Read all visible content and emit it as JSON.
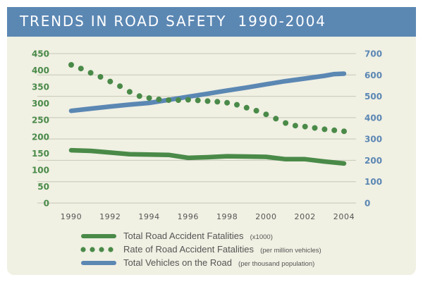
{
  "header": {
    "title": "TRENDS IN ROAD SAFETY  1990-2004"
  },
  "colors": {
    "header_bg": "#5b87b3",
    "panel_bg": "#f0f0e3",
    "green": "#4a8a48",
    "blue": "#5b87b3",
    "grid": "#c8c8b8"
  },
  "chart_data": {
    "type": "line",
    "title": "TRENDS IN ROAD SAFETY  1990-2004",
    "xlabel": "",
    "ylabel_left": "",
    "ylabel_right": "",
    "x_ticks": [
      "1990",
      "1992",
      "1994",
      "1996",
      "1998",
      "2000",
      "2002",
      "2004"
    ],
    "xlim": [
      1990,
      2004
    ],
    "y_left": {
      "ticks": [
        "0",
        "50",
        "100",
        "150",
        "200",
        "250",
        "300",
        "350",
        "400",
        "450"
      ],
      "ylim": [
        0,
        450
      ]
    },
    "y_right": {
      "ticks": [
        "0",
        "100",
        "200",
        "300",
        "400",
        "500",
        "600",
        "700"
      ],
      "ylim": [
        0,
        700
      ]
    },
    "grid": true,
    "legend_position": "bottom",
    "series": [
      {
        "name": "Total Road Accident Fatalities",
        "unit": "(x1000)",
        "axis": "left",
        "style": "solid",
        "color": "#4a8a48",
        "x": [
          1990,
          1991,
          1992,
          1993,
          1994,
          1995,
          1996,
          1997,
          1998,
          1999,
          2000,
          2001,
          2002,
          2003,
          2004
        ],
        "values": [
          159,
          157,
          152,
          147,
          146,
          145,
          136,
          138,
          141,
          140,
          139,
          132,
          132,
          125,
          119
        ]
      },
      {
        "name": "Rate of Road Accident Fatalities",
        "unit": "(per million vehicles)",
        "axis": "left",
        "style": "dotted",
        "color": "#4a8a48",
        "x": [
          1990,
          1990.5,
          1991,
          1991.5,
          1992,
          1992.5,
          1993,
          1993.5,
          1994,
          1994.5,
          1995,
          1995.5,
          1996,
          1996.5,
          1997,
          1997.5,
          1998,
          1998.5,
          1999,
          1999.5,
          2000,
          2000.5,
          2001,
          2001.5,
          2002,
          2002.5,
          2003,
          2003.5,
          2004
        ],
        "values": [
          416,
          405,
          392,
          380,
          366,
          352,
          335,
          322,
          316,
          312,
          310,
          310,
          311,
          309,
          307,
          305,
          302,
          296,
          287,
          278,
          267,
          254,
          241,
          233,
          230,
          226,
          222,
          219,
          216
        ]
      },
      {
        "name": "Total Vehicles on the Road",
        "unit": "(per thousand population)",
        "axis": "right",
        "style": "solid",
        "color": "#5b87b3",
        "x": [
          1990,
          1991,
          1992,
          1993,
          1994,
          1995,
          1996,
          1997,
          1998,
          1999,
          2000,
          2001,
          2002,
          2003,
          2003.5,
          2004
        ],
        "values": [
          432,
          442,
          452,
          461,
          469,
          483,
          498,
          512,
          527,
          541,
          556,
          571,
          583,
          596,
          604,
          606
        ]
      }
    ]
  },
  "legend": [
    {
      "label": "Total Road Accident Fatalities",
      "sub": "(x1000)"
    },
    {
      "label": "Rate of Road Accident Fatalities",
      "sub": "(per million vehicles)"
    },
    {
      "label": "Total Vehicles on the Road",
      "sub": "(per thousand population)"
    }
  ]
}
